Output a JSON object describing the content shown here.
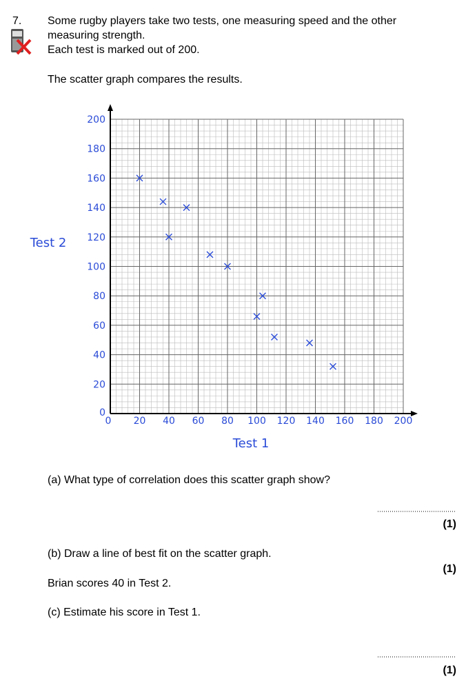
{
  "question": {
    "number": "7.",
    "lines": [
      "Some rugby players take two tests, one measuring speed and the other",
      "measuring strength.",
      "Each test is marked out of 200."
    ],
    "intro": "The scatter graph compares the results.",
    "part_a": {
      "text": "(a) What type of correlation does this scatter graph show?",
      "marks": "(1)"
    },
    "part_b": {
      "text": "(b) Draw a line of best fit on the scatter graph.",
      "marks": "(1)"
    },
    "info": "Brian scores 40 in Test 2.",
    "part_c": {
      "text": "(c) Estimate his score in Test 1.",
      "marks": "(1)"
    }
  },
  "chart_data": {
    "type": "scatter",
    "xlabel": "Test 1",
    "ylabel": "Test 2",
    "x": [
      20,
      36,
      52,
      40,
      68,
      80,
      104,
      100,
      112,
      136,
      152
    ],
    "values": [
      160,
      144,
      140,
      120,
      108,
      100,
      80,
      66,
      52,
      48,
      32
    ],
    "color": "#2a4bd7",
    "xlim": [
      0,
      200
    ],
    "ylim": [
      0,
      200
    ],
    "xticks": [
      0,
      20,
      40,
      60,
      80,
      100,
      120,
      140,
      160,
      180,
      200
    ],
    "yticks": [
      0,
      20,
      40,
      60,
      80,
      100,
      120,
      140,
      160,
      180,
      200
    ],
    "grid": true
  }
}
